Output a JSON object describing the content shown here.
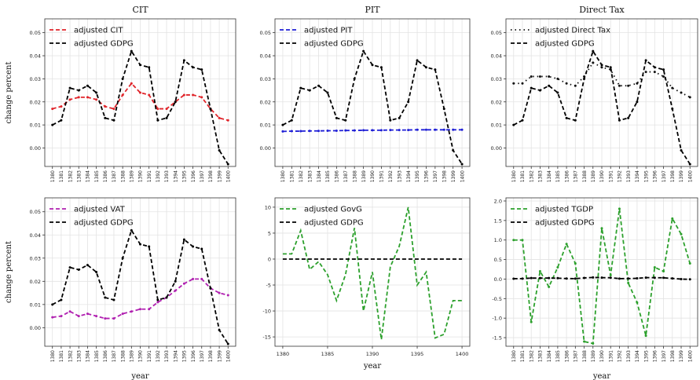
{
  "figure": {
    "x_axis_label": "year",
    "y_axis_label": "change percent"
  },
  "colors": {
    "gdpg": "#000000",
    "cit": "#e0242a",
    "pit": "#1f1fd6",
    "direct": "#111111",
    "vat": "#b020b0",
    "govg": "#2ca02c",
    "tgdp": "#2ca02c",
    "grid": "#e3e3e3",
    "frame": "#333333"
  },
  "chart_data": [
    {
      "type": "line",
      "title": "CIT",
      "ylabel": "change percent",
      "xlabel": "",
      "ylim": [
        -0.008,
        0.056
      ],
      "yticks": [
        0.0,
        0.01,
        0.02,
        0.03,
        0.04,
        0.05
      ],
      "ytick_labels": [
        "0.00",
        "0.01",
        "0.02",
        "0.03",
        "0.04",
        "0.05"
      ],
      "x": [
        1380,
        1381,
        1382,
        1383,
        1384,
        1385,
        1386,
        1387,
        1388,
        1389,
        1390,
        1391,
        1392,
        1393,
        1394,
        1395,
        1396,
        1397,
        1398,
        1399,
        1400
      ],
      "xtick_labels": [
        "1380",
        "1381",
        "1382",
        "1383",
        "1384",
        "1385",
        "1386",
        "1387",
        "1388",
        "1389",
        "1390",
        "1391",
        "1392",
        "1393",
        "1394",
        "1395",
        "1396",
        "1397",
        "1398",
        "1399",
        "1400"
      ],
      "xtick_rotation": 90,
      "legend_position": "top-left",
      "grid": true,
      "series": [
        {
          "name": "adjusted CIT",
          "color_key": "cit",
          "marker": "dot",
          "values": [
            0.017,
            0.018,
            0.021,
            0.022,
            0.022,
            0.021,
            0.018,
            0.017,
            0.023,
            0.028,
            0.024,
            0.023,
            0.017,
            0.017,
            0.02,
            0.023,
            0.023,
            0.022,
            0.017,
            0.013,
            0.012
          ]
        },
        {
          "name": "adjusted GDPG",
          "color_key": "gdpg",
          "marker": "dot",
          "values": [
            0.01,
            0.012,
            0.026,
            0.025,
            0.027,
            0.024,
            0.013,
            0.012,
            0.03,
            0.042,
            0.036,
            0.035,
            0.012,
            0.013,
            0.02,
            0.038,
            0.035,
            0.034,
            0.017,
            -0.001,
            -0.007
          ]
        }
      ]
    },
    {
      "type": "line",
      "title": "PIT",
      "ylabel": "",
      "xlabel": "",
      "ylim": [
        -0.008,
        0.056
      ],
      "yticks": [
        0.0,
        0.01,
        0.02,
        0.03,
        0.04,
        0.05
      ],
      "ytick_labels": [
        "0.00",
        "0.01",
        "0.02",
        "0.03",
        "0.04",
        "0.05"
      ],
      "x": [
        1380,
        1381,
        1382,
        1383,
        1384,
        1385,
        1386,
        1387,
        1388,
        1389,
        1390,
        1391,
        1392,
        1393,
        1394,
        1395,
        1396,
        1397,
        1398,
        1399,
        1400
      ],
      "xtick_labels": [
        "1380",
        "1381",
        "1382",
        "1383",
        "1384",
        "1385",
        "1386",
        "1387",
        "1388",
        "1389",
        "1390",
        "1391",
        "1392",
        "1393",
        "1394",
        "1395",
        "1396",
        "1397",
        "1398",
        "1399",
        "1400"
      ],
      "xtick_rotation": 90,
      "legend_position": "top-left",
      "grid": true,
      "series": [
        {
          "name": "adjusted PIT",
          "color_key": "pit",
          "marker": "dot",
          "values": [
            0.0072,
            0.0073,
            0.0073,
            0.0074,
            0.0074,
            0.0075,
            0.0075,
            0.0076,
            0.0076,
            0.0077,
            0.0077,
            0.0077,
            0.0078,
            0.0078,
            0.0078,
            0.0079,
            0.0079,
            0.0079,
            0.0079,
            0.0079,
            0.0079
          ]
        },
        {
          "name": "adjusted GDPG",
          "color_key": "gdpg",
          "marker": "dot",
          "values": [
            0.01,
            0.012,
            0.026,
            0.025,
            0.027,
            0.024,
            0.013,
            0.012,
            0.03,
            0.042,
            0.036,
            0.035,
            0.012,
            0.013,
            0.02,
            0.038,
            0.035,
            0.034,
            0.017,
            -0.001,
            -0.007
          ]
        }
      ]
    },
    {
      "type": "line",
      "title": "Direct Tax",
      "ylabel": "",
      "xlabel": "",
      "ylim": [
        -0.008,
        0.056
      ],
      "yticks": [
        0.0,
        0.01,
        0.02,
        0.03,
        0.04,
        0.05
      ],
      "ytick_labels": [
        "0.00",
        "0.01",
        "0.02",
        "0.03",
        "0.04",
        "0.05"
      ],
      "x": [
        1380,
        1381,
        1382,
        1383,
        1384,
        1385,
        1386,
        1387,
        1388,
        1389,
        1390,
        1391,
        1392,
        1393,
        1394,
        1395,
        1396,
        1397,
        1398,
        1399,
        1400
      ],
      "xtick_labels": [
        "1380",
        "1381",
        "1382",
        "1383",
        "1384",
        "1385",
        "1386",
        "1387",
        "1388",
        "1389",
        "1390",
        "1391",
        "1392",
        "1393",
        "1394",
        "1395",
        "1396",
        "1397",
        "1398",
        "1399",
        "1400"
      ],
      "xtick_rotation": 90,
      "legend_position": "top-left",
      "grid": true,
      "series": [
        {
          "name": "adjusted Direct Tax",
          "color_key": "direct",
          "marker": "dot",
          "line": "dotted",
          "values": [
            0.028,
            0.028,
            0.031,
            0.031,
            0.031,
            0.03,
            0.028,
            0.027,
            0.031,
            0.037,
            0.035,
            0.034,
            0.027,
            0.027,
            0.028,
            0.033,
            0.033,
            0.031,
            0.026,
            0.024,
            0.022
          ]
        },
        {
          "name": "adjusted GDPG",
          "color_key": "gdpg",
          "marker": "dot",
          "values": [
            0.01,
            0.012,
            0.026,
            0.025,
            0.027,
            0.024,
            0.013,
            0.012,
            0.03,
            0.042,
            0.036,
            0.035,
            0.012,
            0.013,
            0.02,
            0.038,
            0.035,
            0.034,
            0.017,
            -0.001,
            -0.007
          ]
        }
      ]
    },
    {
      "type": "line",
      "title": "",
      "ylabel": "change percent",
      "xlabel": "year",
      "ylim": [
        -0.008,
        0.056
      ],
      "yticks": [
        0.0,
        0.01,
        0.02,
        0.03,
        0.04,
        0.05
      ],
      "ytick_labels": [
        "0.00",
        "0.01",
        "0.02",
        "0.03",
        "0.04",
        "0.05"
      ],
      "x": [
        1380,
        1381,
        1382,
        1383,
        1384,
        1385,
        1386,
        1387,
        1388,
        1389,
        1390,
        1391,
        1392,
        1393,
        1394,
        1395,
        1396,
        1397,
        1398,
        1399,
        1400
      ],
      "xtick_labels": [
        "1380",
        "1381",
        "1382",
        "1383",
        "1384",
        "1385",
        "1386",
        "1387",
        "1388",
        "1389",
        "1390",
        "1391",
        "1392",
        "1393",
        "1394",
        "1395",
        "1396",
        "1397",
        "1398",
        "1399",
        "1400"
      ],
      "xtick_rotation": 90,
      "legend_position": "top-left",
      "grid": true,
      "series": [
        {
          "name": "adjusted VAT",
          "color_key": "vat",
          "marker": "dot",
          "values": [
            0.0045,
            0.005,
            0.007,
            0.005,
            0.006,
            0.005,
            0.004,
            0.004,
            0.006,
            0.007,
            0.008,
            0.008,
            0.011,
            0.013,
            0.016,
            0.019,
            0.021,
            0.021,
            0.017,
            0.015,
            0.014
          ]
        },
        {
          "name": "adjusted GDPG",
          "color_key": "gdpg",
          "marker": "dot",
          "values": [
            0.01,
            0.012,
            0.026,
            0.025,
            0.027,
            0.024,
            0.013,
            0.012,
            0.03,
            0.042,
            0.036,
            0.035,
            0.012,
            0.013,
            0.02,
            0.038,
            0.035,
            0.034,
            0.017,
            -0.001,
            -0.007
          ]
        }
      ]
    },
    {
      "type": "line",
      "title": "",
      "ylabel": "",
      "xlabel": "year",
      "ylim": [
        -16.8,
        11.8
      ],
      "yticks": [
        -15,
        -10,
        -5,
        0,
        5,
        10
      ],
      "ytick_labels": [
        "-15",
        "-10",
        "-5",
        "0",
        "5",
        "10"
      ],
      "x": [
        1380,
        1381,
        1382,
        1383,
        1384,
        1385,
        1386,
        1387,
        1388,
        1389,
        1390,
        1391,
        1392,
        1393,
        1394,
        1395,
        1396,
        1397,
        1398,
        1399,
        1400
      ],
      "xtick_labels": [
        "1380",
        "1385",
        "1390",
        "1395",
        "1400"
      ],
      "xtick_values": [
        1380,
        1385,
        1390,
        1395,
        1400
      ],
      "xtick_rotation": 0,
      "legend_position": "top-left",
      "grid": true,
      "series": [
        {
          "name": "adjusted GovG",
          "color_key": "govg",
          "marker": "none",
          "values": [
            1.0,
            1.0,
            5.5,
            -2.0,
            -0.5,
            -3.0,
            -8.0,
            -3.0,
            6.0,
            -10.0,
            -2.5,
            -15.5,
            -1.5,
            2.5,
            10.0,
            -5.0,
            -2.5,
            -15.2,
            -14.5,
            -8.0,
            -8.0
          ]
        },
        {
          "name": "adjusted GDPG",
          "color_key": "gdpg",
          "marker": "none",
          "values": [
            0.0,
            0.0,
            0.0,
            0.0,
            0.0,
            0.0,
            0.0,
            0.0,
            0.0,
            0.0,
            0.0,
            0.0,
            0.0,
            0.0,
            0.0,
            0.0,
            0.0,
            0.0,
            0.0,
            0.0,
            0.0
          ]
        }
      ]
    },
    {
      "type": "line",
      "title": "",
      "ylabel": "",
      "xlabel": "year",
      "ylim": [
        -1.72,
        2.08
      ],
      "yticks": [
        -1.5,
        -1.0,
        -0.5,
        0.0,
        0.5,
        1.0,
        1.5,
        2.0
      ],
      "ytick_labels": [
        "-1.5",
        "-1.0",
        "-0.5",
        "0.0",
        "0.5",
        "1.0",
        "1.5",
        "2.0"
      ],
      "x": [
        1380,
        1381,
        1382,
        1383,
        1384,
        1385,
        1386,
        1387,
        1388,
        1389,
        1390,
        1391,
        1392,
        1393,
        1394,
        1395,
        1396,
        1397,
        1398,
        1399,
        1400
      ],
      "xtick_labels": [
        "1380",
        "1381",
        "1382",
        "1383",
        "1384",
        "1385",
        "1386",
        "1387",
        "1388",
        "1389",
        "1390",
        "1391",
        "1392",
        "1393",
        "1394",
        "1395",
        "1396",
        "1397",
        "1398",
        "1399",
        "1400"
      ],
      "xtick_rotation": 90,
      "legend_position": "top-left",
      "grid": true,
      "series": [
        {
          "name": "adjusted TGDP",
          "color_key": "tgdp",
          "marker": "dot",
          "values": [
            1.0,
            1.0,
            -1.1,
            0.2,
            -0.2,
            0.3,
            0.9,
            0.4,
            -1.6,
            -1.65,
            1.3,
            0.1,
            1.8,
            -0.1,
            -0.6,
            -1.45,
            0.3,
            0.2,
            1.55,
            1.15,
            0.4
          ]
        },
        {
          "name": "adjusted GDPG",
          "color_key": "gdpg",
          "marker": "dot",
          "values": [
            0.01,
            0.012,
            0.026,
            0.025,
            0.027,
            0.024,
            0.013,
            0.012,
            0.03,
            0.042,
            0.036,
            0.035,
            0.012,
            0.013,
            0.02,
            0.038,
            0.035,
            0.034,
            0.017,
            -0.001,
            -0.007
          ]
        }
      ]
    }
  ]
}
